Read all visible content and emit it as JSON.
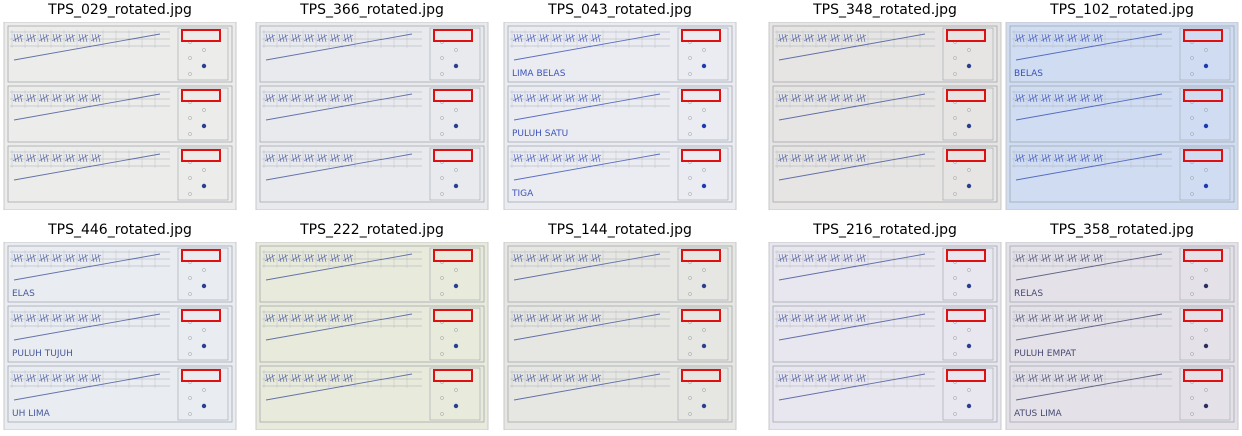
{
  "panels": [
    {
      "title": "TPS_029_rotated.jpg",
      "tint": "#ececea",
      "ink": "#2a3f8f",
      "handwriting": []
    },
    {
      "title": "TPS_366_rotated.jpg",
      "tint": "#e9eaee",
      "ink": "#2a3f8f",
      "handwriting": []
    },
    {
      "title": "TPS_043_rotated.jpg",
      "tint": "#eaecf2",
      "ink": "#1f3ab0",
      "handwriting": [
        "LIMA BELAS",
        "PULUH SATU",
        "TIGA"
      ]
    },
    {
      "title": "TPS_348_rotated.jpg",
      "tint": "#e6e5e3",
      "ink": "#2a3f8f",
      "handwriting": []
    },
    {
      "title": "TPS_102_rotated.jpg",
      "tint": "#cfdcf2",
      "ink": "#1f3ab0",
      "handwriting": [
        "BELAS"
      ]
    },
    {
      "title": "TPS_446_rotated.jpg",
      "tint": "#e9ecf1",
      "ink": "#2a3f8f",
      "handwriting": [
        "ELAS",
        "PULUH TUJUH",
        "UH LIMA"
      ]
    },
    {
      "title": "TPS_222_rotated.jpg",
      "tint": "#e8eadb",
      "ink": "#2a3f8f",
      "handwriting": []
    },
    {
      "title": "TPS_144_rotated.jpg",
      "tint": "#e6e6e2",
      "ink": "#2a3f8f",
      "handwriting": []
    },
    {
      "title": "TPS_216_rotated.jpg",
      "tint": "#e8e6ee",
      "ink": "#2a3f8f",
      "handwriting": []
    },
    {
      "title": "TPS_358_rotated.jpg",
      "tint": "#e4e2e8",
      "ink": "#2a2f5f",
      "handwriting": [
        "RELAS",
        "PULUH EMPAT",
        "ATUS LIMA"
      ]
    }
  ],
  "highlight_color": "#e01010"
}
